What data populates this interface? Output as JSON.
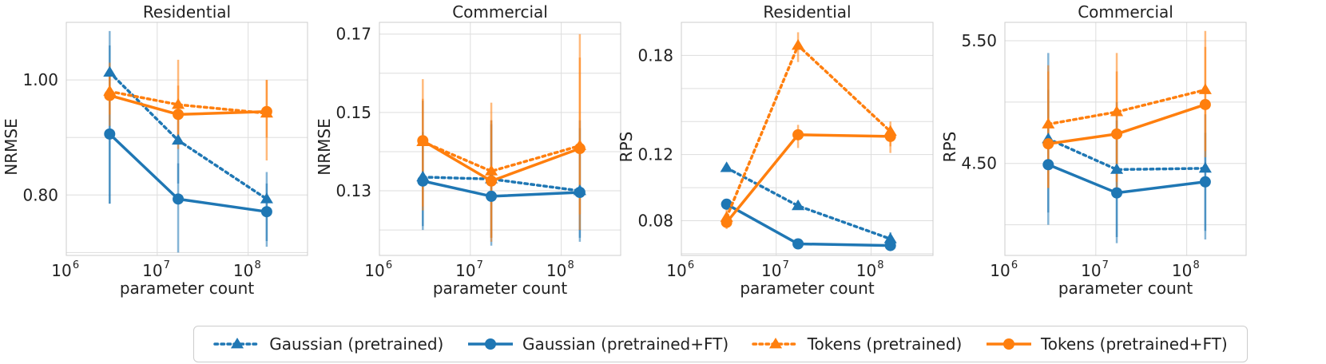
{
  "colors": {
    "gaussian": "#1f77b4",
    "tokens": "#ff7f0e",
    "grid": "#dddddd",
    "axis": "#cccccc",
    "text": "#222222"
  },
  "chart_data": [
    {
      "type": "line",
      "title": "Residential",
      "xlabel": "parameter count",
      "ylabel": "NRMSE",
      "xscale": "log",
      "xlim": [
        1000000,
        450000000
      ],
      "ylim": [
        0.695,
        1.1
      ],
      "xticks": [
        1000000,
        10000000,
        100000000
      ],
      "xticklabels": [
        {
          "base": "10",
          "exp": "6"
        },
        {
          "base": "10",
          "exp": "7"
        },
        {
          "base": "10",
          "exp": "8"
        }
      ],
      "yticks": [
        0.8,
        1.0
      ],
      "yticklabels": [
        "0.80",
        "1.00"
      ],
      "ygrid": [
        0.7,
        0.8,
        0.9,
        1.0
      ],
      "series": [
        {
          "name": "Gaussian (pretrained)",
          "key": "gaussian",
          "style": "dotted",
          "marker": "triangle",
          "x": [
            3000000,
            17000000,
            160000000
          ],
          "y": [
            1.013,
            0.895,
            0.793
          ],
          "err_low": [
            0.785,
            0.82,
            0.72
          ],
          "err_high": [
            1.085,
            0.94,
            0.84
          ]
        },
        {
          "name": "Gaussian (pretrained+FT)",
          "key": "gaussian",
          "style": "solid",
          "marker": "circle",
          "x": [
            3000000,
            17000000,
            160000000
          ],
          "y": [
            0.906,
            0.793,
            0.771
          ],
          "err_low": [
            0.785,
            0.7,
            0.71
          ],
          "err_high": [
            1.06,
            0.855,
            0.82
          ]
        },
        {
          "name": "Tokens (pretrained)",
          "key": "tokens",
          "style": "dotted",
          "marker": "triangle",
          "x": [
            3000000,
            17000000,
            160000000
          ],
          "y": [
            0.98,
            0.957,
            0.942
          ],
          "err_low": [
            0.94,
            0.89,
            0.86
          ],
          "err_high": [
            1.03,
            1.035,
            1.0
          ]
        },
        {
          "name": "Tokens (pretrained+FT)",
          "key": "tokens",
          "style": "solid",
          "marker": "circle",
          "x": [
            3000000,
            17000000,
            160000000
          ],
          "y": [
            0.973,
            0.94,
            0.945
          ],
          "err_low": [
            0.92,
            0.88,
            0.9
          ],
          "err_high": [
            1.01,
            0.99,
            1.0
          ]
        }
      ]
    },
    {
      "type": "line",
      "title": "Commercial",
      "xlabel": "parameter count",
      "ylabel": "NRMSE",
      "xscale": "log",
      "xlim": [
        1000000,
        450000000
      ],
      "ylim": [
        0.1135,
        0.173
      ],
      "xticks": [
        1000000,
        10000000,
        100000000
      ],
      "xticklabels": [
        {
          "base": "10",
          "exp": "6"
        },
        {
          "base": "10",
          "exp": "7"
        },
        {
          "base": "10",
          "exp": "8"
        }
      ],
      "yticks": [
        0.13,
        0.15,
        0.17
      ],
      "yticklabels": [
        "0.13",
        "0.15",
        "0.17"
      ],
      "ygrid": [
        0.12,
        0.13,
        0.14,
        0.15,
        0.16,
        0.17
      ],
      "series": [
        {
          "name": "Gaussian (pretrained)",
          "key": "gaussian",
          "style": "dotted",
          "marker": "triangle",
          "x": [
            3000000,
            17000000,
            160000000
          ],
          "y": [
            0.1335,
            0.133,
            0.13
          ],
          "err_low": [
            0.121,
            0.118,
            0.118
          ],
          "err_high": [
            0.145,
            0.148,
            0.146
          ]
        },
        {
          "name": "Gaussian (pretrained+FT)",
          "key": "gaussian",
          "style": "solid",
          "marker": "circle",
          "x": [
            3000000,
            17000000,
            160000000
          ],
          "y": [
            0.1325,
            0.1286,
            0.1296
          ],
          "err_low": [
            0.12,
            0.116,
            0.117
          ],
          "err_high": [
            0.153,
            0.147,
            0.148
          ]
        },
        {
          "name": "Tokens (pretrained)",
          "key": "tokens",
          "style": "dotted",
          "marker": "triangle",
          "x": [
            3000000,
            17000000,
            160000000
          ],
          "y": [
            0.1425,
            0.135,
            0.1415
          ],
          "err_low": [
            0.126,
            0.118,
            0.124
          ],
          "err_high": [
            0.1585,
            0.1525,
            0.17
          ]
        },
        {
          "name": "Tokens (pretrained+FT)",
          "key": "tokens",
          "style": "solid",
          "marker": "circle",
          "x": [
            3000000,
            17000000,
            160000000
          ],
          "y": [
            0.1428,
            0.1325,
            0.1408
          ],
          "err_low": [
            0.125,
            0.117,
            0.12
          ],
          "err_high": [
            0.1535,
            0.148,
            0.164
          ]
        }
      ]
    },
    {
      "type": "line",
      "title": "Residential",
      "xlabel": "parameter count",
      "ylabel": "RPS",
      "xscale": "log",
      "xlim": [
        1000000,
        450000000
      ],
      "ylim": [
        0.059,
        0.2
      ],
      "xticks": [
        1000000,
        10000000,
        100000000
      ],
      "xticklabels": [
        {
          "base": "10",
          "exp": "6"
        },
        {
          "base": "10",
          "exp": "7"
        },
        {
          "base": "10",
          "exp": "8"
        }
      ],
      "yticks": [
        0.08,
        0.12,
        0.18
      ],
      "yticklabels": [
        "0.08",
        "0.12",
        "0.18"
      ],
      "ygrid": [
        0.06,
        0.08,
        0.1,
        0.12,
        0.14,
        0.16,
        0.18
      ],
      "series": [
        {
          "name": "Gaussian (pretrained)",
          "key": "gaussian",
          "style": "dotted",
          "marker": "triangle",
          "x": [
            3000000,
            17000000,
            160000000
          ],
          "y": [
            0.112,
            0.089,
            0.069
          ],
          "err_low": [
            0.11,
            0.087,
            0.066
          ],
          "err_high": [
            0.114,
            0.092,
            0.073
          ]
        },
        {
          "name": "Gaussian (pretrained+FT)",
          "key": "gaussian",
          "style": "solid",
          "marker": "circle",
          "x": [
            3000000,
            17000000,
            160000000
          ],
          "y": [
            0.09,
            0.066,
            0.065
          ],
          "err_low": [
            0.088,
            0.064,
            0.063
          ],
          "err_high": [
            0.092,
            0.068,
            0.068
          ]
        },
        {
          "name": "Tokens (pretrained)",
          "key": "tokens",
          "style": "dotted",
          "marker": "triangle",
          "x": [
            3000000,
            17000000,
            160000000
          ],
          "y": [
            0.082,
            0.186,
            0.134
          ],
          "err_low": [
            0.077,
            0.176,
            0.125
          ],
          "err_high": [
            0.087,
            0.194,
            0.14
          ]
        },
        {
          "name": "Tokens (pretrained+FT)",
          "key": "tokens",
          "style": "solid",
          "marker": "circle",
          "x": [
            3000000,
            17000000,
            160000000
          ],
          "y": [
            0.079,
            0.132,
            0.131
          ],
          "err_low": [
            0.075,
            0.124,
            0.121
          ],
          "err_high": [
            0.084,
            0.138,
            0.137
          ]
        }
      ]
    },
    {
      "type": "line",
      "title": "Commercial",
      "xlabel": "parameter count",
      "ylabel": "RPS",
      "xscale": "log",
      "xlim": [
        1000000,
        450000000
      ],
      "ylim": [
        3.75,
        5.65
      ],
      "xticks": [
        1000000,
        10000000,
        100000000
      ],
      "xticklabels": [
        {
          "base": "10",
          "exp": "6"
        },
        {
          "base": "10",
          "exp": "7"
        },
        {
          "base": "10",
          "exp": "8"
        }
      ],
      "yticks": [
        4.5,
        5.5
      ],
      "yticklabels": [
        "4.50",
        "5.50"
      ],
      "ygrid": [
        4.0,
        4.5,
        5.0,
        5.5
      ],
      "series": [
        {
          "name": "Gaussian (pretrained)",
          "key": "gaussian",
          "style": "dotted",
          "marker": "triangle",
          "x": [
            3000000,
            17000000,
            160000000
          ],
          "y": [
            4.7,
            4.45,
            4.46
          ],
          "err_low": [
            4.1,
            3.85,
            3.95
          ],
          "err_high": [
            5.4,
            5.0,
            4.9
          ]
        },
        {
          "name": "Gaussian (pretrained+FT)",
          "key": "gaussian",
          "style": "solid",
          "marker": "circle",
          "x": [
            3000000,
            17000000,
            160000000
          ],
          "y": [
            4.49,
            4.26,
            4.35
          ],
          "err_low": [
            4.0,
            3.9,
            3.88
          ],
          "err_high": [
            5.1,
            4.85,
            4.75
          ]
        },
        {
          "name": "Tokens (pretrained)",
          "key": "tokens",
          "style": "dotted",
          "marker": "triangle",
          "x": [
            3000000,
            17000000,
            160000000
          ],
          "y": [
            4.82,
            4.92,
            5.1
          ],
          "err_low": [
            4.3,
            4.35,
            4.6
          ],
          "err_high": [
            5.3,
            5.4,
            5.58
          ]
        },
        {
          "name": "Tokens (pretrained+FT)",
          "key": "tokens",
          "style": "solid",
          "marker": "circle",
          "x": [
            3000000,
            17000000,
            160000000
          ],
          "y": [
            4.66,
            4.74,
            4.98
          ],
          "err_low": [
            4.3,
            4.3,
            4.55
          ],
          "err_high": [
            5.25,
            5.25,
            5.45
          ]
        }
      ]
    }
  ],
  "legend": [
    {
      "label": "Gaussian (pretrained)",
      "key": "gaussian",
      "style": "dotted",
      "marker": "triangle"
    },
    {
      "label": "Gaussian (pretrained+FT)",
      "key": "gaussian",
      "style": "solid",
      "marker": "circle"
    },
    {
      "label": "Tokens (pretrained)",
      "key": "tokens",
      "style": "dotted",
      "marker": "triangle"
    },
    {
      "label": "Tokens (pretrained+FT)",
      "key": "tokens",
      "style": "solid",
      "marker": "circle"
    }
  ]
}
